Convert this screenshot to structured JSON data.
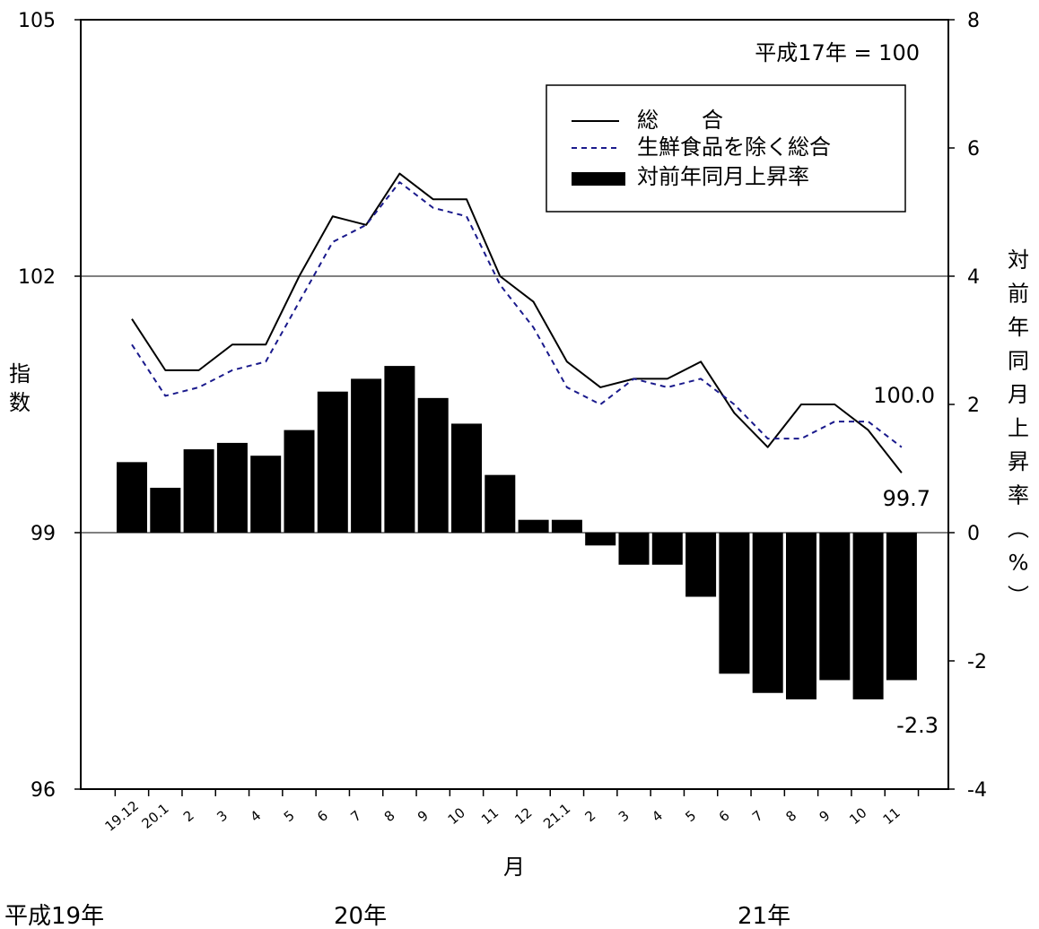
{
  "chart_data": {
    "type": "bar+line",
    "base_note": "平成17年 = 100",
    "x_label": "月",
    "y_left_label": "指数",
    "y_right_label": "対前年同月上昇率（%）",
    "era_labels": [
      "平成19年",
      "20年",
      "21年"
    ],
    "categories": [
      "19.12",
      "20.1",
      "2",
      "3",
      "4",
      "5",
      "6",
      "7",
      "8",
      "9",
      "10",
      "11",
      "12",
      "21.1",
      "2",
      "3",
      "4",
      "5",
      "6",
      "7",
      "8",
      "9",
      "10",
      "11"
    ],
    "y_left": {
      "min": 96,
      "max": 105,
      "ticks": [
        96,
        99,
        102,
        105
      ]
    },
    "y_right": {
      "min": -4,
      "max": 8,
      "ticks": [
        -4,
        -2,
        0,
        2,
        4,
        6,
        8
      ]
    },
    "series": [
      {
        "name": "総　　合",
        "kind": "line",
        "axis": "left",
        "style": "solid",
        "color": "#000000",
        "values": [
          101.5,
          100.9,
          100.9,
          101.2,
          101.2,
          102.0,
          102.7,
          102.6,
          103.2,
          102.9,
          102.9,
          102.0,
          101.7,
          101.0,
          100.7,
          100.8,
          100.8,
          101.0,
          100.4,
          100.0,
          100.5,
          100.5,
          100.2,
          99.7
        ]
      },
      {
        "name": "生鮮食品を除く総合",
        "kind": "line",
        "axis": "left",
        "style": "dashed",
        "color": "#1a1a8c",
        "values": [
          101.2,
          100.6,
          100.7,
          100.9,
          101.0,
          101.7,
          102.4,
          102.6,
          103.1,
          102.8,
          102.7,
          101.9,
          101.4,
          100.7,
          100.5,
          100.8,
          100.7,
          100.8,
          100.5,
          100.1,
          100.1,
          100.3,
          100.3,
          100.0
        ]
      },
      {
        "name": "対前年同月上昇率",
        "kind": "bar",
        "axis": "right",
        "color": "#000000",
        "values": [
          1.1,
          0.7,
          1.3,
          1.4,
          1.2,
          1.6,
          2.2,
          2.4,
          2.6,
          2.1,
          1.7,
          0.9,
          0.2,
          0.2,
          -0.2,
          -0.5,
          -0.5,
          -1.0,
          -2.2,
          -2.5,
          -2.6,
          -2.3,
          -2.6,
          -2.3
        ]
      }
    ],
    "annotations": [
      "100.0",
      "99.7",
      "-2.3"
    ],
    "grid": {
      "horizontal_at_left": [
        99,
        102
      ]
    },
    "legend_position": "top-right"
  }
}
